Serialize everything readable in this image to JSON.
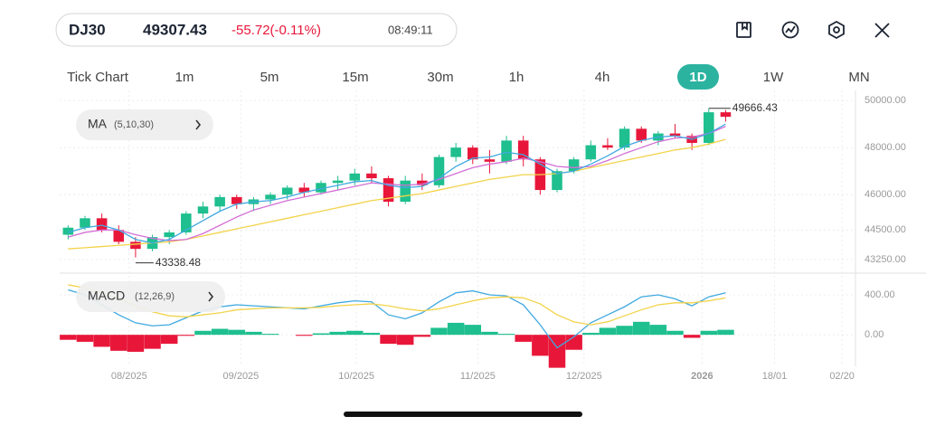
{
  "header": {
    "symbol": "DJ30",
    "price": "49307.43",
    "change": "-55.72(-0.11%)",
    "time": "08:49:11",
    "timeframes": [
      "Tick Chart",
      "1m",
      "5m",
      "15m",
      "30m",
      "1h",
      "4h",
      "1D",
      "1W",
      "MN"
    ],
    "selected_timeframe": 7
  },
  "x_axis": {
    "xlim": [
      -0.5,
      46.7
    ],
    "xticks": [
      {
        "value": 3.62,
        "label": "08/2025"
      },
      {
        "value": 10.25,
        "label": "09/2025"
      },
      {
        "value": 17.1,
        "label": "10/2025"
      },
      {
        "value": 24.3,
        "label": "11/2025"
      },
      {
        "value": 30.6,
        "label": "12/2025"
      },
      {
        "value": 37.6,
        "label": "2026"
      },
      {
        "value": 41.9,
        "label": "18/01"
      },
      {
        "value": 45.9,
        "label": "02/20"
      }
    ]
  },
  "chart_data": [
    {
      "type": "candlestick",
      "indicator_label": "MA",
      "indicator_params": "(5,10,30)",
      "up_color": "#1fbf8f",
      "down_color": "#e8173a",
      "open": [
        44300,
        44600,
        45000,
        44500,
        44000,
        43700,
        44200,
        44400,
        45200,
        45500,
        45900,
        45600,
        45800,
        46000,
        46300,
        46100,
        46500,
        46600,
        46900,
        46700,
        45700,
        46600,
        46400,
        47600,
        48000,
        47500,
        47400,
        48300,
        47500,
        46200,
        47000,
        47500,
        48100,
        48000,
        48800,
        48300,
        48600,
        48500,
        48200,
        49500
      ],
      "high": [
        44700,
        45100,
        45200,
        44700,
        44200,
        44300,
        44500,
        45300,
        45700,
        46000,
        46000,
        45900,
        46100,
        46400,
        46500,
        46600,
        46800,
        47100,
        47200,
        46800,
        46800,
        46900,
        47700,
        48200,
        48100,
        47900,
        48500,
        48500,
        47600,
        47100,
        47600,
        48300,
        48400,
        48900,
        48900,
        48700,
        49000,
        48600,
        49666.43,
        49600
      ],
      "low": [
        44100,
        44500,
        44400,
        43900,
        43338.48,
        43600,
        43900,
        44300,
        45000,
        45300,
        45400,
        45300,
        45600,
        45800,
        45900,
        46000,
        46200,
        46400,
        46500,
        45500,
        45600,
        46200,
        46300,
        47400,
        47300,
        46900,
        47300,
        47200,
        46000,
        46100,
        46900,
        47400,
        47900,
        47900,
        48200,
        48100,
        48400,
        47900,
        48100,
        49100
      ],
      "close": [
        44600,
        45000,
        44500,
        44000,
        43700,
        44200,
        44400,
        45200,
        45500,
        45900,
        45600,
        45800,
        46000,
        46300,
        46100,
        46500,
        46600,
        46900,
        46700,
        45700,
        46600,
        46400,
        47600,
        48000,
        47500,
        47400,
        48300,
        47500,
        46200,
        47000,
        47500,
        48100,
        48000,
        48800,
        48300,
        48600,
        48500,
        48200,
        49500,
        49307.43
      ],
      "series": [
        {
          "color": "#f2d34a",
          "values": [
            43700,
            43750,
            43800,
            43850,
            43900,
            43950,
            44000,
            44100,
            44250,
            44400,
            44550,
            44700,
            44850,
            45000,
            45150,
            45300,
            45450,
            45600,
            45750,
            45850,
            45950,
            46050,
            46200,
            46350,
            46500,
            46650,
            46750,
            46850,
            46850,
            46900,
            47000,
            47150,
            47300,
            47450,
            47600,
            47750,
            47900,
            48000,
            48150,
            48350
          ]
        },
        {
          "color": "#d36fd6",
          "values": [
            44200,
            44400,
            44500,
            44500,
            44300,
            44150,
            44050,
            44100,
            44350,
            44700,
            45050,
            45350,
            45550,
            45750,
            45900,
            46050,
            46200,
            46350,
            46500,
            46450,
            46400,
            46450,
            46650,
            46900,
            47150,
            47300,
            47400,
            47550,
            47400,
            47200,
            47150,
            47200,
            47450,
            47750,
            48000,
            48250,
            48400,
            48450,
            48600,
            48900
          ]
        },
        {
          "color": "#3fa9e0",
          "values": [
            44400,
            44600,
            44700,
            44500,
            44100,
            43950,
            44100,
            44500,
            44900,
            45300,
            45600,
            45700,
            45750,
            45900,
            46100,
            46250,
            46400,
            46550,
            46600,
            46400,
            46300,
            46350,
            46700,
            47200,
            47550,
            47600,
            47800,
            47700,
            47300,
            46900,
            47000,
            47300,
            47650,
            48050,
            48300,
            48450,
            48500,
            48350,
            48600,
            49000
          ]
        }
      ],
      "ylim": [
        42900,
        50350
      ],
      "yticks": [
        {
          "value": 50000,
          "label": "50000.00"
        },
        {
          "value": 48000,
          "label": "48000.00"
        },
        {
          "value": 46000,
          "label": "46000.00"
        },
        {
          "value": 44500,
          "label": "44500.00"
        },
        {
          "value": 43250,
          "label": "43250.00"
        }
      ]
    },
    {
      "type": "macd",
      "indicator_label": "MACD",
      "indicator_params": "(12,26,9)",
      "histogram": [
        -50,
        -70,
        -120,
        -160,
        -170,
        -140,
        -90,
        -10,
        40,
        60,
        50,
        30,
        10,
        0,
        -10,
        15,
        30,
        40,
        20,
        -90,
        -100,
        -20,
        70,
        120,
        100,
        30,
        10,
        -70,
        -210,
        -330,
        -150,
        20,
        70,
        90,
        130,
        100,
        40,
        -30,
        40,
        50
      ],
      "up_color": "#1fbf8f",
      "down_color": "#e8173a",
      "series": [
        {
          "color": "#3fa9e0",
          "values": [
            450,
            400,
            300,
            200,
            120,
            90,
            100,
            170,
            240,
            280,
            300,
            290,
            280,
            270,
            260,
            290,
            320,
            340,
            330,
            200,
            160,
            220,
            330,
            420,
            440,
            400,
            390,
            300,
            100,
            -130,
            -20,
            120,
            200,
            280,
            380,
            400,
            360,
            290,
            380,
            420
          ]
        },
        {
          "color": "#f2d34a",
          "values": [
            500,
            470,
            420,
            360,
            290,
            230,
            190,
            180,
            200,
            220,
            250,
            260,
            270,
            270,
            270,
            275,
            290,
            300,
            310,
            290,
            260,
            240,
            260,
            300,
            340,
            370,
            380,
            370,
            310,
            200,
            130,
            100,
            130,
            190,
            250,
            300,
            320,
            320,
            340,
            370
          ]
        }
      ],
      "ylim": [
        -270,
        590
      ],
      "yticks": [
        {
          "value": 400,
          "label": "400.00"
        },
        {
          "value": 0,
          "label": "0.00"
        }
      ]
    }
  ]
}
